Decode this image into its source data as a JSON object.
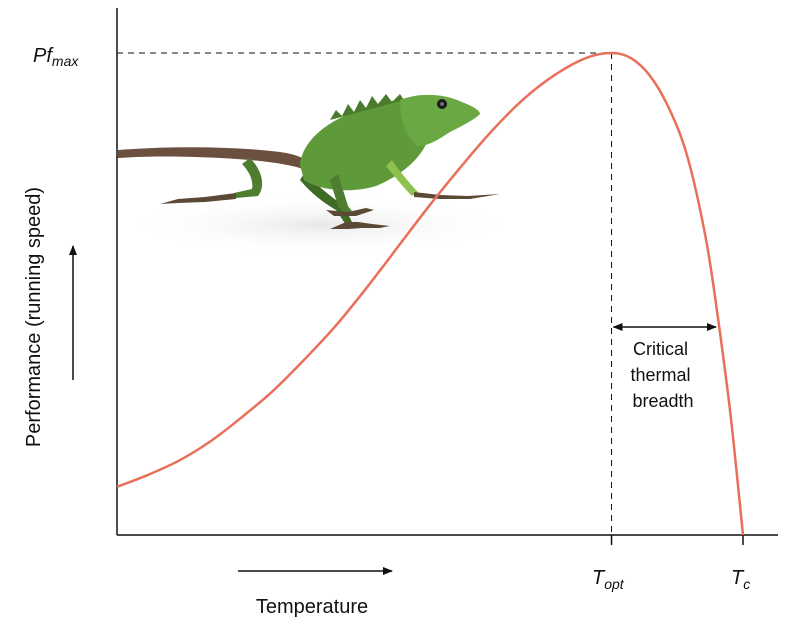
{
  "chart_data": {
    "type": "line",
    "title": "",
    "xlabel": "Temperature",
    "ylabel": "Performance (running speed)",
    "y_peak_label": {
      "main": "Pf",
      "sub": "max"
    },
    "x_opt_label": {
      "main": "T",
      "sub": "opt"
    },
    "x_c_label": {
      "main": "T",
      "sub": "c"
    },
    "annotation": [
      "Critical",
      "thermal",
      "breadth"
    ],
    "xlim": [
      0,
      1
    ],
    "ylim": [
      0,
      1
    ],
    "t_opt": 0.79,
    "t_c": 1.0,
    "series": [
      {
        "color": "#e8705a",
        "x": [
          0,
          0.05,
          0.1,
          0.15,
          0.2,
          0.25,
          0.3,
          0.35,
          0.4,
          0.45,
          0.5,
          0.55,
          0.6,
          0.65,
          0.7,
          0.75,
          0.79,
          0.82,
          0.85,
          0.88,
          0.91,
          0.94,
          0.96,
          0.98,
          1.0
        ],
        "y": [
          0.1,
          0.125,
          0.155,
          0.195,
          0.245,
          0.3,
          0.365,
          0.435,
          0.515,
          0.6,
          0.685,
          0.765,
          0.84,
          0.905,
          0.955,
          0.99,
          1.0,
          0.99,
          0.955,
          0.89,
          0.79,
          0.62,
          0.45,
          0.25,
          0.0
        ]
      }
    ],
    "grid": false,
    "legend": "none"
  },
  "colors": {
    "curve": "#e8705a",
    "axis": "#111111",
    "lizard_body": "#5f9a3a",
    "lizard_dark": "#3f6b25",
    "lizard_tail": "#6b5040"
  },
  "image": {
    "name": "green-lizard"
  }
}
